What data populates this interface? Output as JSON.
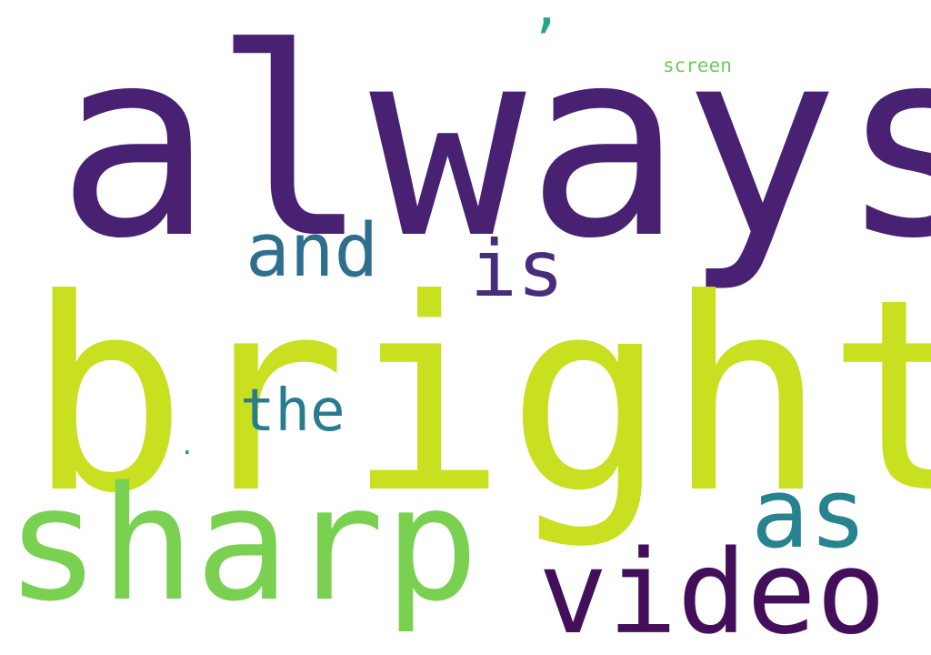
{
  "words": [
    {
      "id": "always",
      "text": "always",
      "color": "#482172"
    },
    {
      "id": "bright",
      "text": "bright",
      "color": "#c8e020"
    },
    {
      "id": "sharp",
      "text": "sharp",
      "color": "#7ad151"
    },
    {
      "id": "video",
      "text": "video",
      "color": "#440f5a"
    },
    {
      "id": "as",
      "text": "as",
      "color": "#26838f"
    },
    {
      "id": "and",
      "text": "and",
      "color": "#2e6f8e"
    },
    {
      "id": "is",
      "text": "is",
      "color": "#472d7b"
    },
    {
      "id": "the",
      "text": "the",
      "color": "#287c8e"
    },
    {
      "id": "screen",
      "text": "screen",
      "color": "#6ccd5a"
    },
    {
      "id": "comma",
      "text": ",",
      "color": "#22a884"
    },
    {
      "id": "dot",
      "text": ".",
      "color": "#27808e"
    }
  ]
}
